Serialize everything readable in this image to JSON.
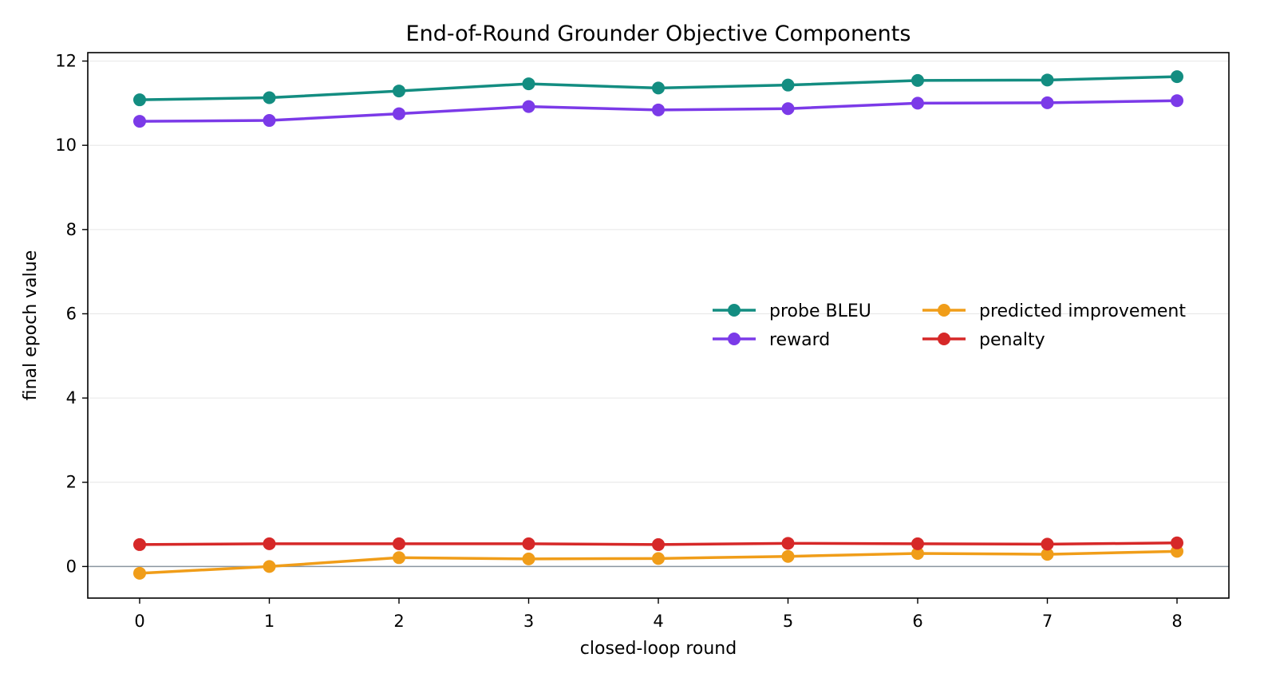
{
  "chart_data": {
    "type": "line",
    "title": "End-of-Round Grounder Objective Components",
    "xlabel": "closed-loop round",
    "ylabel": "final epoch value",
    "x": [
      0,
      1,
      2,
      3,
      4,
      5,
      6,
      7,
      8
    ],
    "xticks": [
      "0",
      "1",
      "2",
      "3",
      "4",
      "5",
      "6",
      "7",
      "8"
    ],
    "yticks": [
      "0",
      "2",
      "4",
      "6",
      "8",
      "10",
      "12"
    ],
    "xlim": [
      -0.4,
      8.4
    ],
    "ylim": [
      -0.75,
      12.2
    ],
    "grid": "horizontal",
    "zero_line": true,
    "legend_placement": "center-right",
    "series": [
      {
        "name": "probe BLEU",
        "color": "#138d81",
        "values": [
          11.08,
          11.13,
          11.29,
          11.46,
          11.36,
          11.43,
          11.54,
          11.55,
          11.63
        ]
      },
      {
        "name": "predicted improvement",
        "color": "#f09d19",
        "values": [
          -0.16,
          0.0,
          0.21,
          0.18,
          0.19,
          0.24,
          0.31,
          0.29,
          0.36
        ]
      },
      {
        "name": "reward",
        "color": "#7b3ae8",
        "values": [
          10.57,
          10.59,
          10.75,
          10.92,
          10.84,
          10.87,
          11.0,
          11.01,
          11.06
        ]
      },
      {
        "name": "penalty",
        "color": "#d62828",
        "values": [
          0.52,
          0.54,
          0.54,
          0.54,
          0.52,
          0.55,
          0.54,
          0.53,
          0.56
        ]
      }
    ]
  }
}
